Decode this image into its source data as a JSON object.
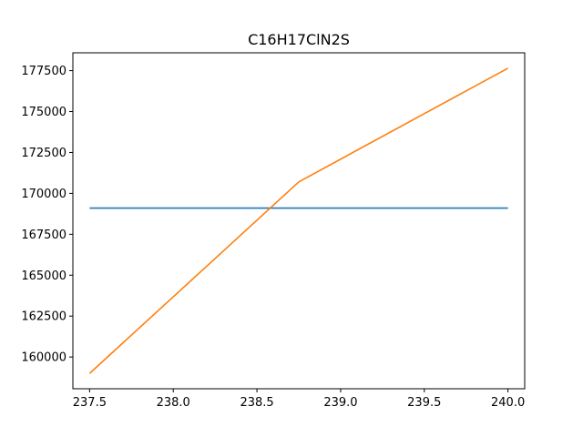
{
  "chart_data": {
    "type": "line",
    "title": "C16H17ClN2S",
    "xlabel": "",
    "ylabel": "",
    "xlim": [
      237.4,
      240.1
    ],
    "ylim": [
      158060,
      178590
    ],
    "grid": false,
    "x_ticks": [
      237.5,
      238.0,
      238.5,
      239.0,
      239.5,
      240.0
    ],
    "x_tick_labels": [
      "237.5",
      "238.0",
      "238.5",
      "239.0",
      "239.5",
      "240.0"
    ],
    "y_ticks": [
      160000,
      162500,
      165000,
      167500,
      170000,
      172500,
      175000,
      177500
    ],
    "y_tick_labels": [
      "160000",
      "162500",
      "165000",
      "167500",
      "170000",
      "172500",
      "175000",
      "177500"
    ],
    "series": [
      {
        "color": "#1f77b4",
        "x": [
          237.5,
          240.0
        ],
        "y": [
          169100,
          169100
        ]
      },
      {
        "color": "#ff7f0e",
        "x": [
          237.5,
          238.75,
          240.0
        ],
        "y": [
          159000,
          170700,
          177650
        ]
      }
    ]
  }
}
